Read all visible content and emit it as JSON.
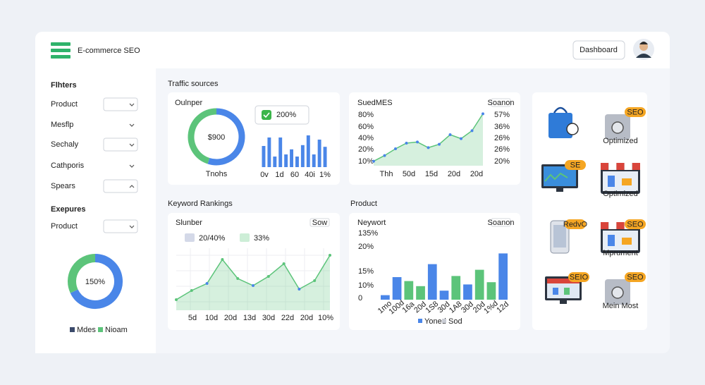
{
  "header": {
    "title": "E-commerce SEO",
    "button": "Dashboard"
  },
  "sidebar": {
    "filters_title": "Flhters",
    "filters": [
      "Product",
      "Mesflp",
      "Sechaly",
      "Cathporis",
      "Spears"
    ],
    "exposures_title": "Exepures",
    "exposures_filter": "Product",
    "donut": {
      "label": "150%",
      "values": [
        68,
        32
      ],
      "colors": [
        "#4a86e8",
        "#5cc47a"
      ],
      "legend": [
        "Mdes",
        "Nioam"
      ],
      "legend_colors": [
        "#3b4a6b",
        "#5cc47a"
      ]
    }
  },
  "traffic": {
    "title": "Traffic sources",
    "card": {
      "label": "Oulnper",
      "donut": {
        "center": "$900",
        "caption": "Tnohs",
        "values": [
          55,
          45
        ],
        "colors": [
          "#4a86e8",
          "#5cc47a"
        ]
      },
      "badge": "200%",
      "bars": {
        "values": [
          50,
          70,
          25,
          70,
          30,
          42,
          25,
          52,
          75,
          30,
          65,
          48
        ],
        "color": "#4a86e8",
        "x_labels": [
          "0v",
          "1d",
          "60",
          "40i",
          "1%"
        ]
      }
    },
    "line_card": {
      "label": "SuedMES",
      "tag": "Soanon",
      "left_labels": [
        "80%",
        "60%",
        "40%",
        "20%",
        "10%"
      ],
      "right_labels": [
        "57%",
        "36%",
        "26%",
        "26%",
        "20%"
      ],
      "x_labels": [
        "Thh",
        "50d",
        "15d",
        "20d",
        "20d"
      ],
      "values": [
        8,
        18,
        30,
        40,
        42,
        32,
        38,
        55,
        48,
        62,
        92
      ],
      "color": "#5cc47a"
    }
  },
  "keywords": {
    "title": "Keyword Rankings",
    "label": "Slunber",
    "tag": "Sow",
    "legend": [
      "20/40%",
      "33%"
    ],
    "legend_colors": [
      "#d4d9e8",
      "#cdeed7"
    ],
    "values": [
      15,
      28,
      38,
      72,
      45,
      35,
      48,
      66,
      30,
      42,
      78
    ],
    "color": "#5cc47a",
    "x_labels": [
      "5d",
      "10d",
      "20d",
      "13d",
      "30d",
      "22d",
      "20d",
      "10%"
    ]
  },
  "product": {
    "title": "Product",
    "label": "Neywort",
    "tag": "Soanon",
    "y_labels": [
      "135%",
      "20%",
      "15%",
      "10%",
      "0"
    ],
    "values": [
      8,
      40,
      33,
      24,
      63,
      16,
      42,
      27,
      53,
      31,
      82
    ],
    "colors": [
      "#4a86e8",
      "#4a86e8",
      "#5cc47a",
      "#5cc47a",
      "#4a86e8",
      "#4a86e8",
      "#5cc47a",
      "#4a86e8",
      "#5cc47a",
      "#5cc47a",
      "#4a86e8"
    ],
    "x_labels": [
      "1mo",
      "100d",
      "16a",
      "20d",
      "1S8",
      "30d",
      "1A8",
      "30d",
      "20d",
      "1%d",
      "12d"
    ],
    "legend": [
      "Yoned",
      "Sod"
    ],
    "legend_colors": [
      "#4a86e8",
      "#c9ccd4"
    ]
  },
  "icons": [
    {},
    {
      "badge": "SEO",
      "caption": "Optimized"
    },
    {
      "badge": "SE"
    },
    {
      "caption": "Optimized"
    },
    {
      "badge": "RedvO"
    },
    {
      "badge": "SEO",
      "caption": "Mprument"
    },
    {
      "badge": "SEIO"
    },
    {
      "badge": "SEO",
      "caption": "Mein Most"
    }
  ]
}
